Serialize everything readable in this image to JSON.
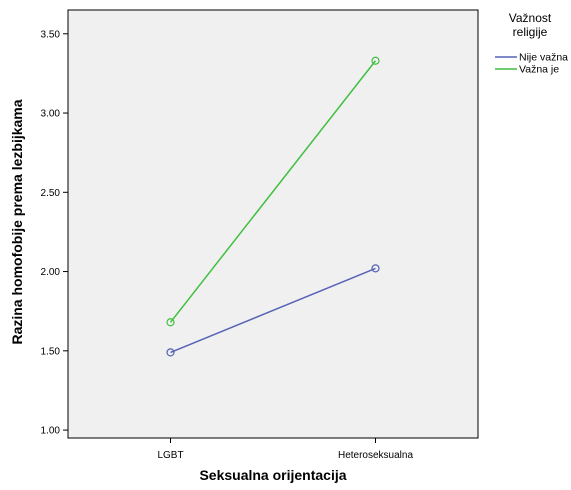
{
  "chart_data": {
    "type": "line",
    "xlabel": "Seksualna orijentacija",
    "ylabel": "Razina homofobije prema lezbijkama",
    "categories": [
      "LGBT",
      "Heteroseksualna"
    ],
    "ylim": [
      0.95,
      3.65
    ],
    "yticks": [
      "1.00",
      "1.50",
      "2.00",
      "2.50",
      "3.00",
      "3.50"
    ],
    "grid": false,
    "legend": {
      "title_line1": "Važnost",
      "title_line2": "religije",
      "placement": "right"
    },
    "series": [
      {
        "name": "Nije važna",
        "values": [
          1.49,
          2.02
        ],
        "color": "#5662b6"
      },
      {
        "name": "Važna je",
        "values": [
          1.68,
          3.33
        ],
        "color": "#3fbf3f"
      }
    ],
    "marker": "open-circle",
    "plot_background": "#f0f0f0"
  }
}
